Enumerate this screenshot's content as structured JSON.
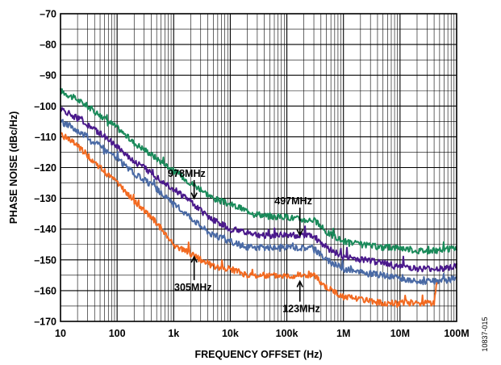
{
  "chart_data": {
    "type": "line",
    "xlabel": "FREQUENCY OFFSET (Hz)",
    "ylabel": "PHASE NOISE (dBc/Hz)",
    "xscale": "log",
    "xlim": [
      10,
      100000000
    ],
    "ylim": [
      -170,
      -70
    ],
    "grid": true,
    "x_tick_values": [
      10,
      100,
      1000,
      10000,
      100000,
      1000000,
      10000000,
      100000000
    ],
    "x_tick_labels": [
      "10",
      "100",
      "1k",
      "10k",
      "100k",
      "1M",
      "10M",
      "100M"
    ],
    "y_tick_values": [
      -70,
      -80,
      -90,
      -100,
      -110,
      -120,
      -130,
      -140,
      -150,
      -160,
      -170
    ],
    "y_tick_labels": [
      "–70",
      "–80",
      "–90",
      "–100",
      "–110",
      "–120",
      "–130",
      "–140",
      "–150",
      "–160",
      "–170"
    ],
    "series": [
      {
        "name": "978MHz",
        "color": "#1a8a5a",
        "x": [
          10,
          20,
          30,
          50,
          100,
          200,
          300,
          500,
          1000,
          2000,
          3000,
          5000,
          10000,
          20000,
          30000,
          50000,
          100000,
          200000,
          300000,
          500000,
          1000000,
          2000000,
          5000000,
          10000000,
          20000000,
          50000000,
          100000000
        ],
        "y": [
          -95,
          -98,
          -100,
          -103,
          -107,
          -112,
          -114,
          -117,
          -121,
          -125,
          -127,
          -130,
          -132,
          -134,
          -135,
          -136,
          -136,
          -137,
          -137,
          -141,
          -144,
          -145,
          -146,
          -146,
          -147,
          -147,
          -146
        ]
      },
      {
        "name": "497MHz",
        "color": "#4b1a8c",
        "x": [
          10,
          20,
          30,
          50,
          100,
          200,
          300,
          500,
          1000,
          2000,
          3000,
          5000,
          10000,
          20000,
          30000,
          50000,
          100000,
          200000,
          300000,
          500000,
          1000000,
          2000000,
          5000000,
          10000000,
          20000000,
          50000000,
          100000000
        ],
        "y": [
          -101,
          -104,
          -106,
          -109,
          -113,
          -118,
          -120,
          -123,
          -127,
          -131,
          -134,
          -137,
          -140,
          -141,
          -142,
          -142,
          -142,
          -142,
          -142,
          -146,
          -149,
          -150,
          -151,
          -152,
          -153,
          -153,
          -152
        ]
      },
      {
        "name": "305MHz",
        "color": "#4a6aa5",
        "x": [
          10,
          20,
          30,
          50,
          100,
          200,
          300,
          500,
          1000,
          2000,
          3000,
          5000,
          10000,
          20000,
          30000,
          50000,
          100000,
          200000,
          300000,
          500000,
          1000000,
          2000000,
          5000000,
          10000000,
          20000000,
          50000000,
          100000000
        ],
        "y": [
          -105,
          -108,
          -110,
          -113,
          -117,
          -122,
          -124,
          -127,
          -132,
          -136,
          -139,
          -142,
          -144,
          -146,
          -146,
          -146,
          -146,
          -146,
          -146,
          -150,
          -153,
          -154,
          -155,
          -156,
          -157,
          -157,
          -156
        ]
      },
      {
        "name": "123MHz",
        "color": "#f26a21",
        "x": [
          10,
          20,
          30,
          50,
          100,
          200,
          300,
          500,
          1000,
          2000,
          3000,
          5000,
          10000,
          20000,
          30000,
          50000,
          100000,
          200000,
          300000,
          500000,
          1000000,
          2000000,
          5000000,
          10000000,
          20000000,
          40000000,
          45000000
        ],
        "y": [
          -109,
          -113,
          -116,
          -120,
          -125,
          -131,
          -134,
          -138,
          -145,
          -148,
          -150,
          -152,
          -153,
          -155,
          -155,
          -155,
          -155,
          -155,
          -155,
          -159,
          -162,
          -163,
          -164,
          -164,
          -164,
          -164,
          -157
        ]
      }
    ],
    "annotations": [
      {
        "text": "978MHz",
        "x": 1700,
        "y": -123,
        "arrow_to": [
          2300,
          -130
        ]
      },
      {
        "text": "497MHz",
        "x": 130000,
        "y": -132,
        "arrow_to": [
          170000,
          -142
        ]
      },
      {
        "text": "305MHz",
        "x": 2200,
        "y": -160,
        "arrow_to": [
          2300,
          -149
        ]
      },
      {
        "text": "123MHz",
        "x": 180000,
        "y": -167,
        "arrow_to": [
          170000,
          -157
        ]
      }
    ]
  },
  "figure_id": "10837-015"
}
